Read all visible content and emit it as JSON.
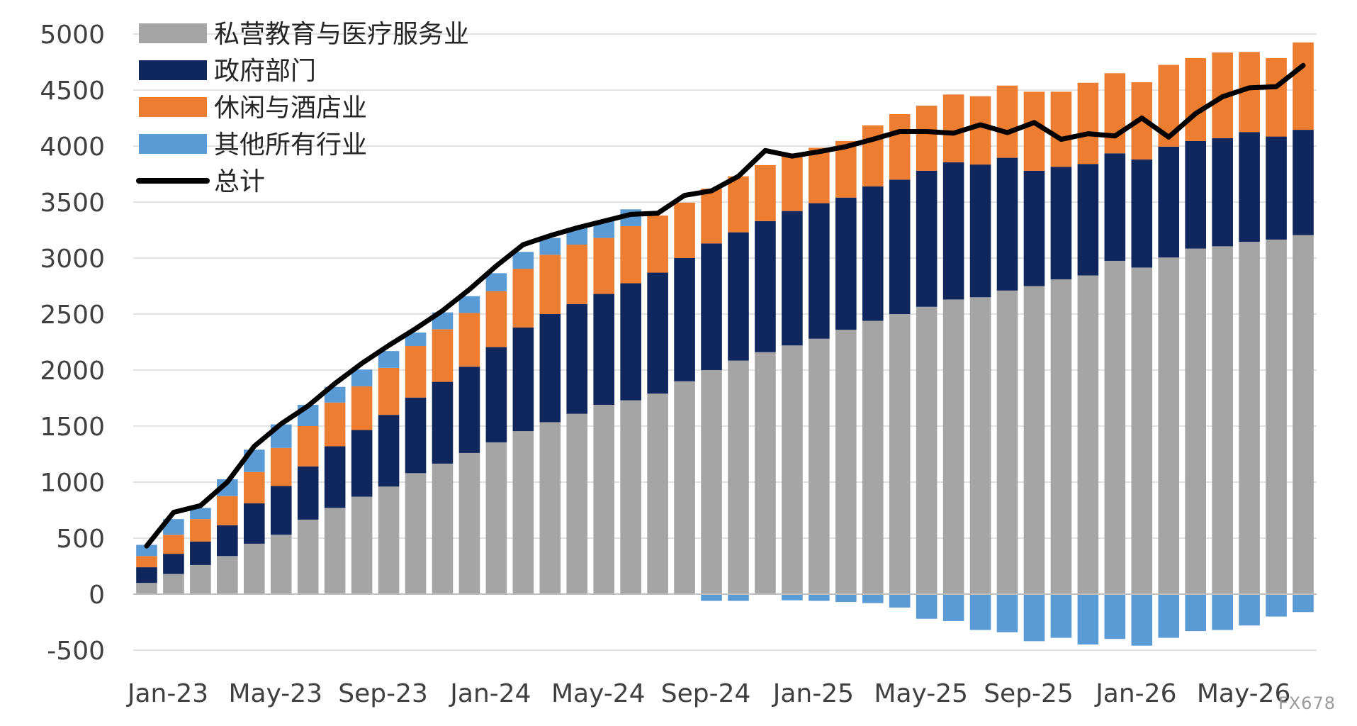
{
  "chart_data": {
    "type": "bar",
    "stacked": true,
    "x_tick_labels": [
      "Jan-23",
      "May-23",
      "Sep-23",
      "Jan-24",
      "May-24",
      "Sep-24",
      "Jan-25",
      "May-25",
      "Sep-25",
      "Jan-26",
      "May-26"
    ],
    "ylim": [
      -500,
      5000
    ],
    "y_ticks": [
      -500,
      0,
      500,
      1000,
      1500,
      2000,
      2500,
      3000,
      3500,
      4000,
      4500,
      5000
    ],
    "grid": "horizontal",
    "legend_position": "top-left",
    "series": [
      {
        "name": "私营教育与医疗服务业",
        "color": "#a5a5a5",
        "values": [
          100,
          180,
          260,
          340,
          450,
          530,
          665,
          770,
          870,
          960,
          1080,
          1165,
          1260,
          1355,
          1455,
          1535,
          1610,
          1690,
          1730,
          1790,
          1900,
          2000,
          2085,
          2160,
          2220,
          2280,
          2360,
          2440,
          2500,
          2565,
          2630,
          2650,
          2710,
          2750,
          2810,
          2845,
          2975,
          2915,
          3005,
          3085,
          3105,
          3145,
          3165,
          3205
        ]
      },
      {
        "name": "政府部门",
        "color": "#10275e",
        "values": [
          140,
          180,
          210,
          275,
          360,
          435,
          475,
          550,
          595,
          640,
          675,
          730,
          770,
          850,
          925,
          965,
          980,
          990,
          1045,
          1080,
          1100,
          1130,
          1145,
          1170,
          1200,
          1210,
          1180,
          1200,
          1200,
          1215,
          1225,
          1185,
          1185,
          1030,
          1005,
          995,
          960,
          965,
          990,
          960,
          965,
          980,
          920,
          940
        ]
      },
      {
        "name": "休闲与酒店业",
        "color": "#ed7d31",
        "values": [
          100,
          170,
          200,
          260,
          280,
          340,
          360,
          390,
          390,
          420,
          460,
          470,
          480,
          500,
          525,
          530,
          530,
          500,
          510,
          510,
          495,
          490,
          500,
          500,
          500,
          495,
          505,
          545,
          585,
          580,
          605,
          610,
          645,
          705,
          670,
          725,
          715,
          690,
          730,
          740,
          765,
          715,
          700,
          780
        ]
      },
      {
        "name": "其他所有行业",
        "color": "#5b9bd5",
        "values": [
          100,
          140,
          100,
          150,
          200,
          210,
          190,
          140,
          150,
          150,
          120,
          150,
          150,
          160,
          150,
          150,
          150,
          150,
          150,
          0,
          0,
          0,
          0,
          0,
          0,
          0,
          0,
          0,
          0,
          0,
          0,
          0,
          0,
          0,
          0,
          0,
          0,
          0,
          0,
          0,
          0,
          0,
          0,
          0
        ]
      },
      {
        "name": "其他所有行业 (负值)",
        "color": "#5b9bd5",
        "values": [
          0,
          0,
          0,
          0,
          0,
          0,
          0,
          0,
          0,
          0,
          0,
          0,
          0,
          0,
          0,
          0,
          0,
          0,
          0,
          0,
          0,
          -60,
          -60,
          0,
          -55,
          -60,
          -70,
          -80,
          -120,
          -220,
          -240,
          -320,
          -340,
          -420,
          -390,
          -450,
          -400,
          -460,
          -390,
          -330,
          -320,
          -280,
          -200,
          -160
        ]
      },
      {
        "name": "总计",
        "color": "#000000",
        "type": "line",
        "values": [
          430,
          730,
          790,
          1000,
          1320,
          1520,
          1680,
          1880,
          2060,
          2220,
          2370,
          2530,
          2720,
          2930,
          3120,
          3200,
          3270,
          3330,
          3390,
          3400,
          3560,
          3600,
          3730,
          3960,
          3910,
          3950,
          3995,
          4060,
          4130,
          4130,
          4115,
          4190,
          4120,
          4210,
          4060,
          4110,
          4090,
          4250,
          4080,
          4290,
          4440,
          4520,
          4530,
          4720
        ]
      }
    ]
  },
  "legend": [
    {
      "label": "私营教育与医疗服务业",
      "color": "#a5a5a5",
      "kind": "patch"
    },
    {
      "label": "政府部门",
      "color": "#10275e",
      "kind": "patch"
    },
    {
      "label": "休闲与酒店业",
      "color": "#ed7d31",
      "kind": "patch"
    },
    {
      "label": "其他所有行业",
      "color": "#5b9bd5",
      "kind": "patch"
    },
    {
      "label": "总计",
      "color": "#000000",
      "kind": "line"
    }
  ],
  "watermark": "FX678"
}
